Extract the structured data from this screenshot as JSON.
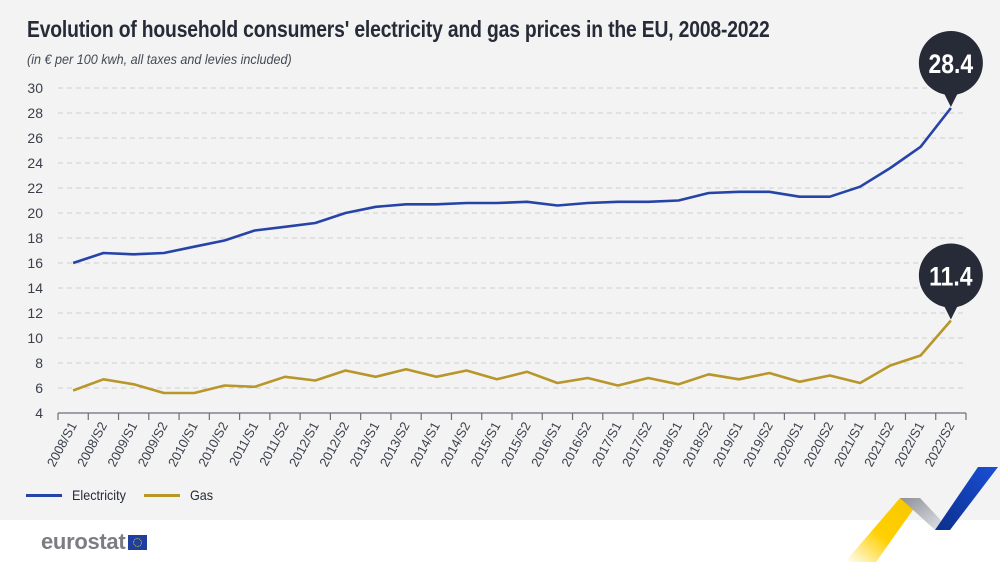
{
  "header": {
    "title": "Evolution of household consumers' electricity and gas prices in the EU, 2008-2022",
    "subtitle": "(in € per 100 kwh, all taxes and levies included)"
  },
  "legend": {
    "items": [
      {
        "label": "Electricity",
        "color": "#2644a8"
      },
      {
        "label": "Gas",
        "color": "#b8962a"
      }
    ]
  },
  "footer": {
    "logo_text": "eurostat",
    "flag_icon": "eu-flag-icon"
  },
  "callouts": [
    {
      "series": "Electricity",
      "label": "28.4"
    },
    {
      "series": "Gas",
      "label": "11.4"
    }
  ],
  "colors": {
    "background": "#f3f3f3",
    "callout": "#262b37",
    "grid": "#cfcfcf",
    "axis": "#6b6f78"
  },
  "chart_data": {
    "type": "line",
    "title": "Evolution of household consumers' electricity and gas prices in the EU, 2008-2022",
    "subtitle": "(in € per 100 kwh, all taxes and levies included)",
    "xlabel": "",
    "ylabel": "",
    "ylim": [
      4,
      30
    ],
    "yticks": [
      4,
      6,
      8,
      10,
      12,
      14,
      16,
      18,
      20,
      22,
      24,
      26,
      28,
      30
    ],
    "grid": true,
    "legend_position": "bottom-left",
    "categories": [
      "2008/S1",
      "2008/S2",
      "2009/S1",
      "2009/S2",
      "2010/S1",
      "2010/S2",
      "2011/S1",
      "2011/S2",
      "2012/S1",
      "2012/S2",
      "2013/S1",
      "2013/S2",
      "2014/S1",
      "2014/S2",
      "2015/S1",
      "2015/S2",
      "2016/S1",
      "2016/S2",
      "2017/S1",
      "2017/S2",
      "2018/S1",
      "2018/S2",
      "2019/S1",
      "2019/S2",
      "2020/S1",
      "2020/S2",
      "2021/S1",
      "2021/S2",
      "2022/S1",
      "2022/S2"
    ],
    "series": [
      {
        "name": "Electricity",
        "color": "#2644a8",
        "values": [
          16.0,
          16.8,
          16.7,
          16.8,
          17.3,
          17.8,
          18.6,
          18.9,
          19.2,
          20.0,
          20.5,
          20.7,
          20.7,
          20.8,
          20.8,
          20.9,
          20.6,
          20.8,
          20.9,
          20.9,
          21.0,
          21.6,
          21.7,
          21.7,
          21.3,
          21.3,
          22.1,
          23.6,
          25.3,
          28.4
        ]
      },
      {
        "name": "Gas",
        "color": "#b8962a",
        "values": [
          5.8,
          6.7,
          6.3,
          5.6,
          5.6,
          6.2,
          6.1,
          6.9,
          6.6,
          7.4,
          6.9,
          7.5,
          6.9,
          7.4,
          6.7,
          7.3,
          6.4,
          6.8,
          6.2,
          6.8,
          6.3,
          7.1,
          6.7,
          7.2,
          6.5,
          7.0,
          6.4,
          7.8,
          8.6,
          11.4
        ]
      }
    ],
    "annotations": [
      {
        "series": "Electricity",
        "category": "2022/S2",
        "text": "28.4"
      },
      {
        "series": "Gas",
        "category": "2022/S2",
        "text": "11.4"
      }
    ]
  }
}
